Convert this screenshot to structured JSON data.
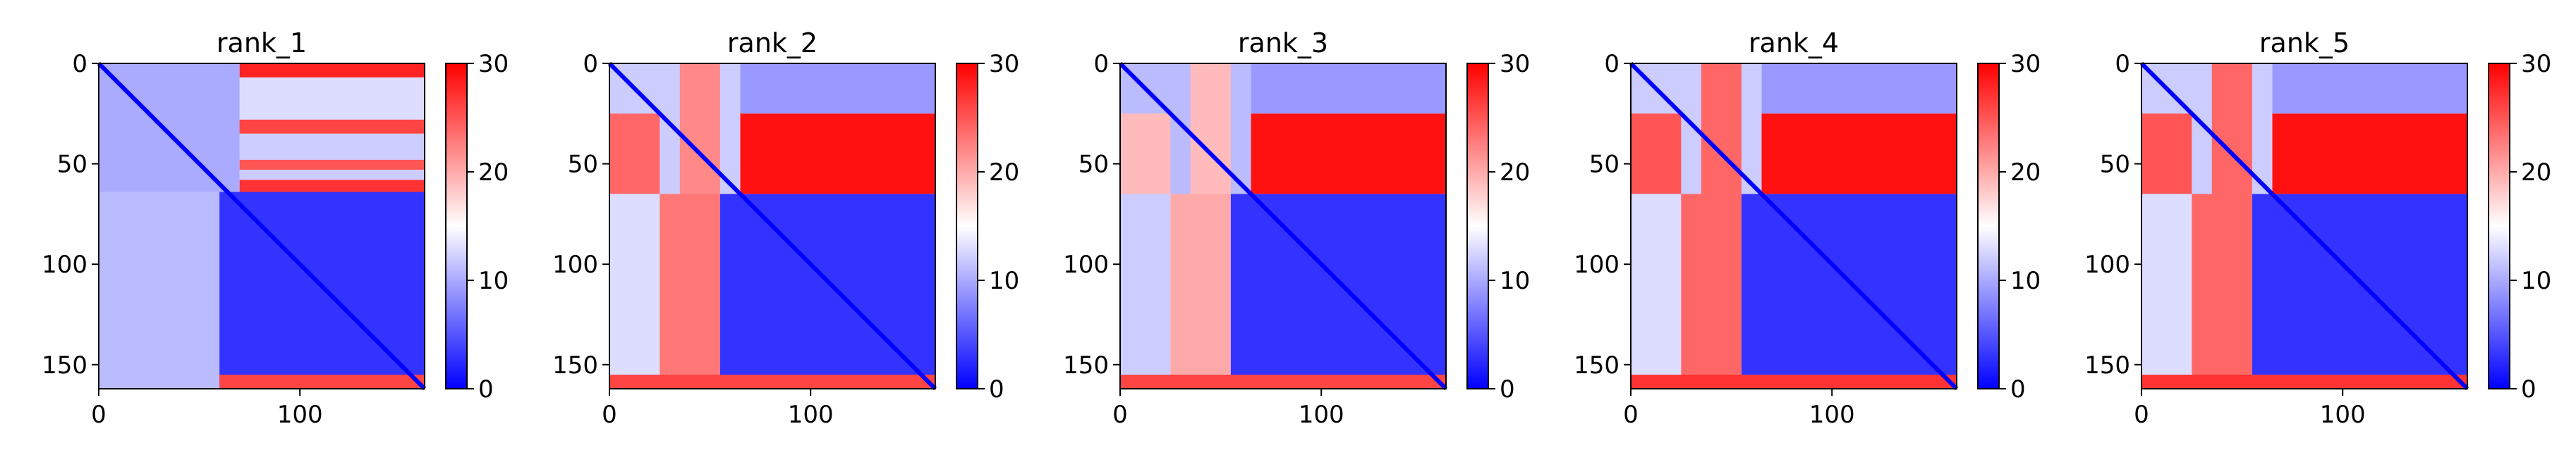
{
  "figure": {
    "colormap": [
      "#0000ff",
      "#ffffff",
      "#ff0000"
    ]
  },
  "chart_data": [
    {
      "type": "heatmap",
      "title": "rank_1",
      "xlabel": "",
      "ylabel": "",
      "xlim": [
        0,
        162
      ],
      "ylim": [
        162,
        0
      ],
      "xticks": [
        0,
        100
      ],
      "yticks": [
        0,
        50,
        100,
        150
      ],
      "colorbar": {
        "vmin": 0,
        "vmax": 30,
        "ticks": [
          0,
          10,
          20,
          30
        ]
      },
      "blocks": [
        {
          "rows": [
            0,
            7
          ],
          "cols": [
            70,
            162
          ],
          "value": 28
        },
        {
          "rows": [
            7,
            28
          ],
          "cols": [
            70,
            162
          ],
          "value": 13
        },
        {
          "rows": [
            28,
            35
          ],
          "cols": [
            0,
            162
          ],
          "value": 26
        },
        {
          "rows": [
            35,
            48
          ],
          "cols": [
            70,
            162
          ],
          "value": 12
        },
        {
          "rows": [
            48,
            53
          ],
          "cols": [
            70,
            162
          ],
          "value": 25
        },
        {
          "rows": [
            53,
            58
          ],
          "cols": [
            70,
            162
          ],
          "value": 12
        },
        {
          "rows": [
            58,
            64
          ],
          "cols": [
            70,
            162
          ],
          "value": 27
        },
        {
          "rows": [
            0,
            64
          ],
          "cols": [
            0,
            70
          ],
          "value": 10
        },
        {
          "rows": [
            64,
            162
          ],
          "cols": [
            0,
            60
          ],
          "value": 11
        },
        {
          "rows": [
            64,
            162
          ],
          "cols": [
            60,
            162
          ],
          "value": 3
        },
        {
          "rows": [
            155,
            162
          ],
          "cols": [
            60,
            162
          ],
          "value": 26
        }
      ]
    },
    {
      "type": "heatmap",
      "title": "rank_2",
      "xlabel": "",
      "ylabel": "",
      "xlim": [
        0,
        162
      ],
      "ylim": [
        162,
        0
      ],
      "xticks": [
        0,
        100
      ],
      "yticks": [
        0,
        50,
        100,
        150
      ],
      "colorbar": {
        "vmin": 0,
        "vmax": 30,
        "ticks": [
          0,
          10,
          20,
          30
        ]
      },
      "blocks": [
        {
          "rows": [
            0,
            25
          ],
          "cols": [
            65,
            162
          ],
          "value": 9
        },
        {
          "rows": [
            25,
            65
          ],
          "cols": [
            65,
            162
          ],
          "value": 29
        },
        {
          "rows": [
            0,
            65
          ],
          "cols": [
            0,
            65
          ],
          "value": 12
        },
        {
          "rows": [
            25,
            65
          ],
          "cols": [
            0,
            25
          ],
          "value": 24
        },
        {
          "rows": [
            0,
            65
          ],
          "cols": [
            35,
            55
          ],
          "value": 22
        },
        {
          "rows": [
            65,
            162
          ],
          "cols": [
            0,
            25
          ],
          "value": 13
        },
        {
          "rows": [
            65,
            162
          ],
          "cols": [
            25,
            55
          ],
          "value": 23
        },
        {
          "rows": [
            65,
            162
          ],
          "cols": [
            55,
            162
          ],
          "value": 3
        },
        {
          "rows": [
            155,
            162
          ],
          "cols": [
            0,
            162
          ],
          "value": 26
        }
      ]
    },
    {
      "type": "heatmap",
      "title": "rank_3",
      "xlabel": "",
      "ylabel": "",
      "xlim": [
        0,
        162
      ],
      "ylim": [
        162,
        0
      ],
      "xticks": [
        0,
        100
      ],
      "yticks": [
        0,
        50,
        100,
        150
      ],
      "colorbar": {
        "vmin": 0,
        "vmax": 30,
        "ticks": [
          0,
          10,
          20,
          30
        ]
      },
      "blocks": [
        {
          "rows": [
            0,
            25
          ],
          "cols": [
            65,
            162
          ],
          "value": 9
        },
        {
          "rows": [
            25,
            65
          ],
          "cols": [
            65,
            162
          ],
          "value": 29
        },
        {
          "rows": [
            0,
            65
          ],
          "cols": [
            0,
            65
          ],
          "value": 11
        },
        {
          "rows": [
            25,
            65
          ],
          "cols": [
            0,
            25
          ],
          "value": 19
        },
        {
          "rows": [
            0,
            65
          ],
          "cols": [
            35,
            55
          ],
          "value": 19
        },
        {
          "rows": [
            65,
            162
          ],
          "cols": [
            0,
            25
          ],
          "value": 12
        },
        {
          "rows": [
            65,
            162
          ],
          "cols": [
            25,
            55
          ],
          "value": 20
        },
        {
          "rows": [
            65,
            162
          ],
          "cols": [
            55,
            162
          ],
          "value": 3
        },
        {
          "rows": [
            155,
            162
          ],
          "cols": [
            0,
            162
          ],
          "value": 26
        }
      ]
    },
    {
      "type": "heatmap",
      "title": "rank_4",
      "xlabel": "",
      "ylabel": "",
      "xlim": [
        0,
        162
      ],
      "ylim": [
        162,
        0
      ],
      "xticks": [
        0,
        100
      ],
      "yticks": [
        0,
        50,
        100,
        150
      ],
      "colorbar": {
        "vmin": 0,
        "vmax": 30,
        "ticks": [
          0,
          10,
          20,
          30
        ]
      },
      "blocks": [
        {
          "rows": [
            0,
            25
          ],
          "cols": [
            65,
            162
          ],
          "value": 9
        },
        {
          "rows": [
            25,
            65
          ],
          "cols": [
            65,
            162
          ],
          "value": 29
        },
        {
          "rows": [
            0,
            65
          ],
          "cols": [
            0,
            65
          ],
          "value": 12
        },
        {
          "rows": [
            25,
            65
          ],
          "cols": [
            0,
            25
          ],
          "value": 25
        },
        {
          "rows": [
            0,
            65
          ],
          "cols": [
            35,
            55
          ],
          "value": 24
        },
        {
          "rows": [
            65,
            162
          ],
          "cols": [
            0,
            25
          ],
          "value": 13
        },
        {
          "rows": [
            65,
            162
          ],
          "cols": [
            25,
            55
          ],
          "value": 24
        },
        {
          "rows": [
            65,
            162
          ],
          "cols": [
            55,
            162
          ],
          "value": 3
        },
        {
          "rows": [
            155,
            162
          ],
          "cols": [
            0,
            162
          ],
          "value": 27
        }
      ]
    },
    {
      "type": "heatmap",
      "title": "rank_5",
      "xlabel": "",
      "ylabel": "",
      "xlim": [
        0,
        162
      ],
      "ylim": [
        162,
        0
      ],
      "xticks": [
        0,
        100
      ],
      "yticks": [
        0,
        50,
        100,
        150
      ],
      "colorbar": {
        "vmin": 0,
        "vmax": 30,
        "ticks": [
          0,
          10,
          20,
          30
        ]
      },
      "blocks": [
        {
          "rows": [
            0,
            25
          ],
          "cols": [
            65,
            162
          ],
          "value": 9
        },
        {
          "rows": [
            25,
            65
          ],
          "cols": [
            65,
            162
          ],
          "value": 29
        },
        {
          "rows": [
            0,
            65
          ],
          "cols": [
            0,
            65
          ],
          "value": 12
        },
        {
          "rows": [
            25,
            65
          ],
          "cols": [
            0,
            25
          ],
          "value": 25
        },
        {
          "rows": [
            0,
            65
          ],
          "cols": [
            35,
            55
          ],
          "value": 24
        },
        {
          "rows": [
            65,
            162
          ],
          "cols": [
            0,
            25
          ],
          "value": 13
        },
        {
          "rows": [
            65,
            162
          ],
          "cols": [
            25,
            55
          ],
          "value": 24
        },
        {
          "rows": [
            65,
            162
          ],
          "cols": [
            55,
            162
          ],
          "value": 3
        },
        {
          "rows": [
            155,
            162
          ],
          "cols": [
            0,
            162
          ],
          "value": 27
        }
      ]
    }
  ]
}
